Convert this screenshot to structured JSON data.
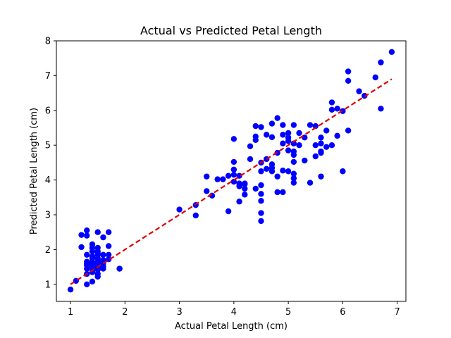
{
  "chart_data": {
    "type": "scatter",
    "title": "Actual vs Predicted Petal Length",
    "xlabel": "Actual Petal Length (cm)",
    "ylabel": "Predicted Petal Length (cm)",
    "xlim": [
      0.74,
      7.16
    ],
    "ylim": [
      0.51,
      8.0
    ],
    "xticks": [
      1,
      2,
      3,
      4,
      5,
      6,
      7
    ],
    "yticks": [
      1,
      2,
      3,
      4,
      5,
      6,
      7,
      8
    ],
    "grid": false,
    "colors": {
      "points": "#0000ff",
      "reference": "#e00000"
    },
    "series": [
      {
        "style": "markers",
        "x": [
          1.0,
          1.1,
          1.2,
          1.2,
          1.3,
          1.3,
          1.3,
          1.3,
          1.3,
          1.3,
          1.3,
          1.3,
          1.3,
          1.4,
          1.4,
          1.4,
          1.4,
          1.4,
          1.4,
          1.4,
          1.4,
          1.4,
          1.4,
          1.4,
          1.5,
          1.5,
          1.5,
          1.5,
          1.5,
          1.5,
          1.5,
          1.5,
          1.5,
          1.5,
          1.5,
          1.5,
          1.5,
          1.6,
          1.6,
          1.6,
          1.6,
          1.6,
          1.6,
          1.6,
          1.7,
          1.7,
          1.7,
          1.7,
          1.9,
          1.9,
          3.0,
          3.3,
          3.3,
          3.5,
          3.5,
          3.6,
          3.7,
          3.8,
          3.9,
          3.9,
          4.0,
          4.0,
          4.0,
          4.0,
          4.0,
          4.1,
          4.1,
          4.1,
          4.1,
          4.2,
          4.2,
          4.2,
          4.2,
          4.3,
          4.3,
          4.4,
          4.4,
          4.4,
          4.4,
          4.5,
          4.5,
          4.5,
          4.5,
          4.5,
          4.5,
          4.5,
          4.5,
          4.6,
          4.6,
          4.6,
          4.7,
          4.7,
          4.7,
          4.7,
          4.7,
          4.8,
          4.8,
          4.8,
          4.8,
          4.9,
          4.9,
          4.9,
          4.9,
          4.9,
          5.0,
          5.0,
          5.0,
          5.0,
          5.0,
          5.1,
          5.1,
          5.1,
          5.1,
          5.1,
          5.1,
          5.1,
          5.1,
          5.2,
          5.2,
          5.3,
          5.3,
          5.4,
          5.4,
          5.5,
          5.5,
          5.5,
          5.6,
          5.6,
          5.6,
          5.6,
          5.6,
          5.7,
          5.7,
          5.8,
          5.8,
          5.8,
          5.9,
          5.9,
          6.0,
          6.0,
          6.1,
          6.1,
          6.1,
          6.3,
          6.4,
          6.6,
          6.7,
          6.7,
          6.9
        ],
        "y": [
          0.85,
          1.1,
          2.42,
          2.07,
          1.0,
          1.3,
          1.6,
          1.85,
          2.4,
          2.55,
          1.55,
          1.65,
          1.45,
          1.08,
          1.35,
          1.5,
          1.65,
          1.8,
          1.95,
          2.15,
          1.42,
          1.75,
          2.05,
          1.58,
          1.22,
          1.42,
          1.55,
          1.65,
          1.75,
          1.85,
          1.95,
          2.05,
          2.5,
          1.3,
          1.5,
          1.6,
          1.9,
          1.45,
          1.6,
          1.7,
          1.85,
          2.35,
          1.52,
          1.68,
          1.85,
          2.1,
          2.5,
          1.72,
          1.45,
          1.45,
          3.15,
          2.98,
          3.28,
          4.1,
          3.68,
          3.55,
          4.02,
          4.02,
          3.1,
          4.12,
          5.18,
          4.52,
          4.3,
          4.15,
          3.95,
          4.12,
          3.38,
          3.9,
          3.82,
          3.88,
          3.75,
          3.58,
          3.9,
          4.6,
          4.97,
          5.55,
          5.25,
          5.15,
          3.75,
          5.52,
          4.5,
          4.25,
          3.85,
          3.6,
          3.4,
          3.05,
          2.82,
          4.32,
          5.3,
          4.6,
          5.62,
          5.23,
          4.45,
          4.35,
          4.25,
          5.78,
          4.78,
          4.1,
          3.65,
          5.3,
          5.05,
          4.27,
          3.65,
          5.58,
          5.35,
          5.22,
          5.12,
          4.85,
          4.25,
          5.58,
          5.05,
          4.52,
          4.72,
          4.82,
          4.18,
          4.05,
          3.92,
          5.35,
          5.0,
          5.22,
          4.56,
          5.58,
          3.92,
          5.55,
          5.0,
          4.68,
          5.22,
          5.05,
          4.82,
          4.78,
          4.1,
          5.42,
          4.95,
          6.23,
          6.02,
          5.0,
          6.05,
          5.27,
          5.98,
          4.25,
          7.12,
          6.85,
          5.42,
          6.55,
          6.42,
          6.95,
          7.38,
          6.05,
          7.68
        ]
      },
      {
        "style": "dashed-line",
        "x": [
          1.0,
          6.9
        ],
        "y": [
          1.0,
          6.9
        ]
      }
    ]
  }
}
